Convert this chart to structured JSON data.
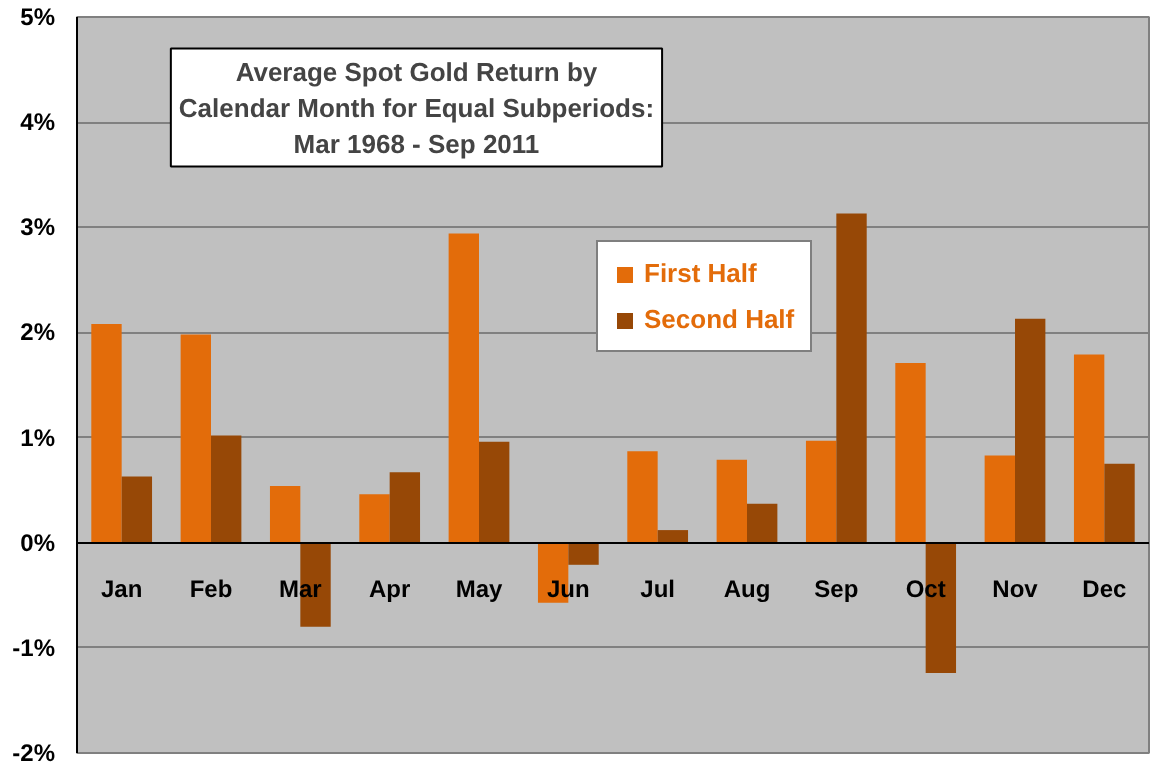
{
  "chart_data": {
    "type": "bar",
    "title": "Average Spot Gold Return by\nCalendar Month for Equal Subperiods:\nMar 1968 - Sep 2011",
    "categories": [
      "Jan",
      "Feb",
      "Mar",
      "Apr",
      "May",
      "Jun",
      "Jul",
      "Aug",
      "Sep",
      "Oct",
      "Nov",
      "Dec"
    ],
    "series": [
      {
        "name": "First Half",
        "color": "#e36c0a",
        "values": [
          2.08,
          1.98,
          0.54,
          0.46,
          2.94,
          -0.57,
          0.87,
          0.79,
          0.97,
          1.71,
          0.83,
          1.79
        ]
      },
      {
        "name": "Second Half",
        "color": "#974806",
        "values": [
          0.63,
          1.02,
          -0.8,
          0.67,
          0.96,
          -0.21,
          0.12,
          0.37,
          3.13,
          -1.24,
          2.13,
          0.75
        ]
      }
    ],
    "ylim": [
      -2,
      5
    ],
    "yticks": [
      {
        "value": -2,
        "label": "-2%"
      },
      {
        "value": -1,
        "label": "-1%"
      },
      {
        "value": 0,
        "label": "0%"
      },
      {
        "value": 1,
        "label": "1%"
      },
      {
        "value": 2,
        "label": "2%"
      },
      {
        "value": 3,
        "label": "3%"
      },
      {
        "value": 4,
        "label": "4%"
      },
      {
        "value": 5,
        "label": "5%"
      }
    ],
    "grid": "y",
    "legend": "top"
  }
}
